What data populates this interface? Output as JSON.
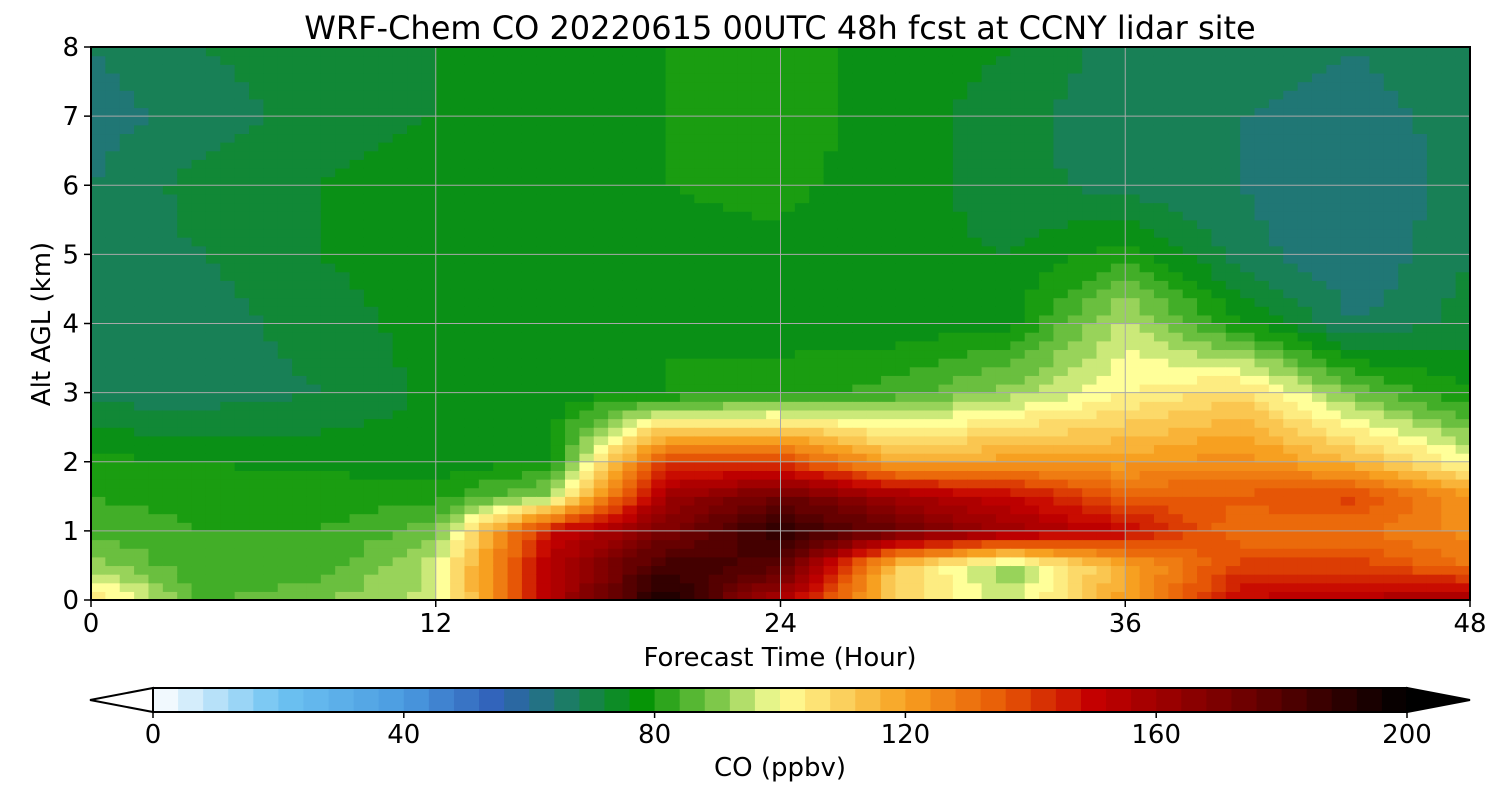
{
  "chart_data": {
    "type": "heatmap",
    "title": "WRF-Chem CO  20220615 00UTC 48h fcst at CCNY lidar site",
    "xlabel": "Forecast Time (Hour)",
    "ylabel": "Alt AGL (km)",
    "xlim": [
      0,
      48
    ],
    "ylim": [
      0,
      8
    ],
    "xticks": [
      0,
      12,
      24,
      36,
      48
    ],
    "yticks": [
      0,
      1,
      2,
      3,
      4,
      5,
      6,
      7,
      8
    ],
    "grid": true,
    "x": [
      0,
      4,
      8,
      12,
      16,
      20,
      24,
      28,
      32,
      36,
      40,
      44,
      48
    ],
    "y": [
      0,
      0.5,
      1,
      1.5,
      2,
      3,
      4,
      5,
      6,
      7,
      8
    ],
    "z": [
      [
        108,
        85,
        90,
        95,
        155,
        195,
        155,
        110,
        95,
        120,
        150,
        155,
        160
      ],
      [
        92,
        82,
        83,
        96,
        155,
        185,
        180,
        110,
        90,
        118,
        140,
        140,
        130
      ],
      [
        85,
        82,
        82,
        88,
        148,
        170,
        190,
        175,
        160,
        150,
        130,
        130,
        125
      ],
      [
        82,
        80,
        80,
        80,
        92,
        160,
        175,
        160,
        150,
        135,
        135,
        140,
        122
      ],
      [
        79,
        78,
        77,
        76,
        78,
        140,
        140,
        118,
        120,
        120,
        125,
        115,
        100
      ],
      [
        68,
        68,
        70,
        75,
        76,
        78,
        79,
        84,
        92,
        102,
        108,
        88,
        78
      ],
      [
        66,
        68,
        72,
        76,
        77,
        78,
        77,
        75,
        77,
        96,
        79,
        66,
        72
      ],
      [
        68,
        70,
        74,
        76,
        78,
        77,
        77,
        75,
        74,
        80,
        68,
        62,
        70
      ],
      [
        66,
        72,
        74,
        76,
        77,
        78,
        79,
        76,
        72,
        68,
        66,
        62,
        68
      ],
      [
        64,
        68,
        72,
        74,
        76,
        78,
        80,
        76,
        72,
        66,
        66,
        64,
        68
      ],
      [
        66,
        70,
        72,
        74,
        76,
        78,
        80,
        76,
        74,
        68,
        68,
        66,
        70
      ]
    ],
    "colorbar": {
      "label": "CO  (ppbv)",
      "min": 0,
      "max": 200,
      "ticks": [
        0,
        40,
        80,
        120,
        160,
        200
      ],
      "extend": "both",
      "stops": [
        {
          "v": 0,
          "c": "#ffffff"
        },
        {
          "v": 20,
          "c": "#6ec3f2"
        },
        {
          "v": 40,
          "c": "#4a9be0"
        },
        {
          "v": 55,
          "c": "#3060b8"
        },
        {
          "v": 65,
          "c": "#1e7a6e"
        },
        {
          "v": 78,
          "c": "#069406"
        },
        {
          "v": 90,
          "c": "#7ec84a"
        },
        {
          "v": 100,
          "c": "#ffff99"
        },
        {
          "v": 120,
          "c": "#f7a020"
        },
        {
          "v": 135,
          "c": "#e85c06"
        },
        {
          "v": 150,
          "c": "#c40000"
        },
        {
          "v": 175,
          "c": "#6a0000"
        },
        {
          "v": 200,
          "c": "#000000"
        }
      ]
    }
  }
}
